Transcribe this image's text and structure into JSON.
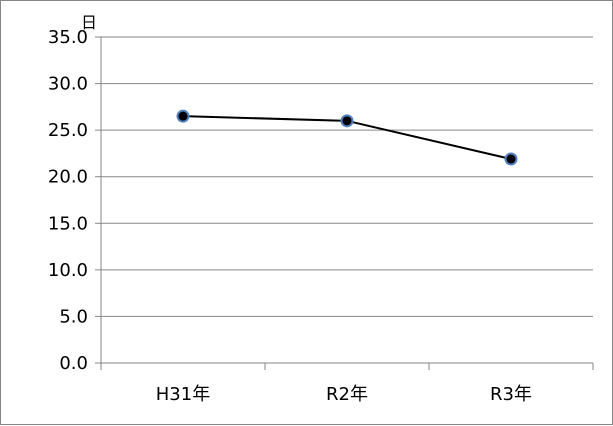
{
  "chart_data": {
    "type": "line",
    "categories": [
      "H31年",
      "R2年",
      "R3年"
    ],
    "series": [
      {
        "values": [
          26.5,
          26.0,
          21.9
        ]
      }
    ],
    "ylim": [
      0,
      35
    ],
    "yticks": [
      0,
      5,
      10,
      15,
      20,
      25,
      30,
      35
    ],
    "ytick_labels": [
      "0.0",
      "5.0",
      "10.0",
      "15.0",
      "20.0",
      "25.0",
      "30.0",
      "35.0"
    ],
    "y_unit": "日",
    "grid": true,
    "legend": "none",
    "colors": {
      "line": "#000000",
      "marker_fill": "#000000",
      "marker_edge": "#4f81bd",
      "grid": "#868686",
      "axis": "#868686"
    }
  }
}
